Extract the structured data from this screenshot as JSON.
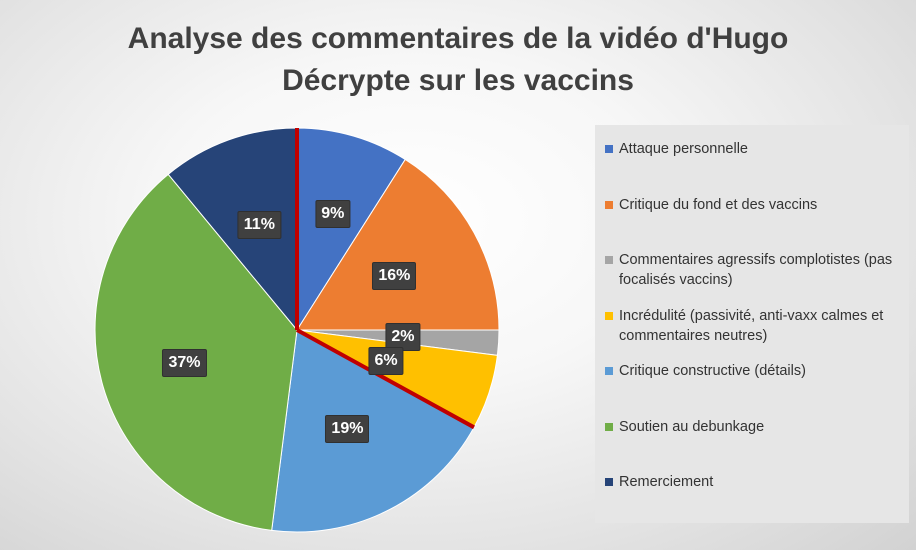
{
  "chart_data": {
    "type": "pie",
    "title_lines": [
      "Analyse des commentaires de la vidéo d'Hugo",
      "Décrypte sur les vaccins"
    ],
    "start_angle_deg": 0,
    "slices": [
      {
        "label": "Attaque personnelle",
        "value": 9,
        "display": "9%",
        "color": "#4472C4"
      },
      {
        "label": "Critique du fond et des vaccins",
        "value": 16,
        "display": "16%",
        "color": "#ED7D31"
      },
      {
        "label": "Commentaires agressifs complotistes (pas focalisés vaccins)",
        "value": 2,
        "display": "2%",
        "color": "#A5A5A5"
      },
      {
        "label": "Incrédulité (passivité, anti-vaxx calmes et commentaires neutres)",
        "value": 6,
        "display": "6%",
        "color": "#FFC000"
      },
      {
        "label": "Critique constructive (détails)",
        "value": 19,
        "display": "19%",
        "color": "#5B9BD5"
      },
      {
        "label": "Soutien au debunkage",
        "value": 37,
        "display": "37%",
        "color": "#70AD47"
      },
      {
        "label": "Remerciement",
        "value": 11,
        "display": "11%",
        "color": "#264478"
      }
    ],
    "highlight_color": "#C00000",
    "legend_position": "right"
  }
}
